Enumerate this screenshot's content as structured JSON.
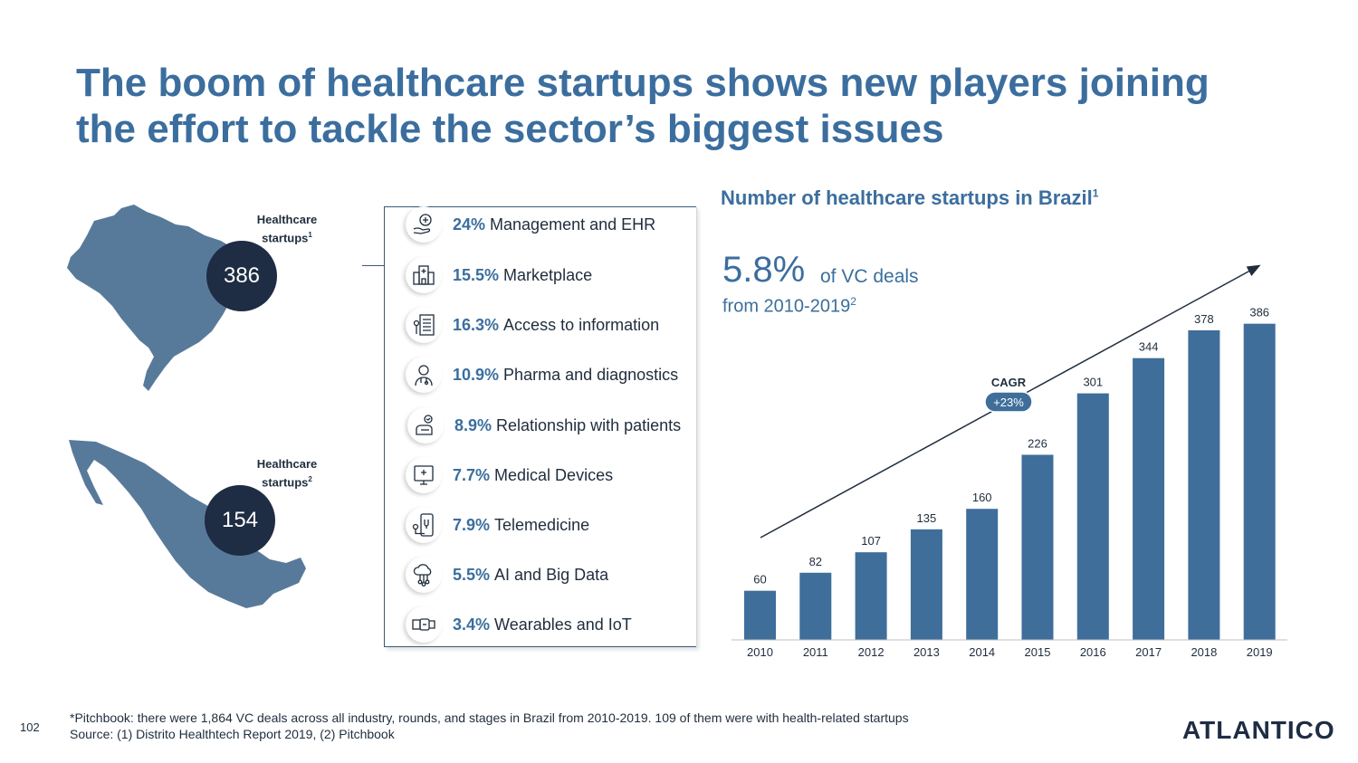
{
  "title": {
    "line1": "The boom of healthcare startups shows new players joining",
    "line2": "the effort to tackle the sector’s biggest issues"
  },
  "maps": [
    {
      "country": "Brazil",
      "label_line1": "Healthcare",
      "label_line2": "startups",
      "label_sup": "1",
      "value": "386"
    },
    {
      "country": "Mexico",
      "label_line1": "Healthcare",
      "label_line2": "startups",
      "label_sup": "2",
      "value": "154"
    }
  ],
  "categories": [
    {
      "pct": "24%",
      "label": "Management and EHR",
      "icon": "hand-medical-icon"
    },
    {
      "pct": "15.5%",
      "label": "Marketplace",
      "icon": "hospital-building-icon"
    },
    {
      "pct": "16.3%",
      "label": "Access to information",
      "icon": "document-list-icon"
    },
    {
      "pct": "10.9%",
      "label": "Pharma and diagnostics",
      "icon": "doctor-icon"
    },
    {
      "pct": "8.9%",
      "label": "Relationship with patients",
      "icon": "patient-hand-icon"
    },
    {
      "pct": "7.7%",
      "label": "Medical Devices",
      "icon": "monitor-icon"
    },
    {
      "pct": "7.9%",
      "label": "Telemedicine",
      "icon": "phone-stethoscope-icon"
    },
    {
      "pct": "5.5%",
      "label": "AI and Big Data",
      "icon": "cloud-network-icon"
    },
    {
      "pct": "3.4%",
      "label": "Wearables and IoT",
      "icon": "wearable-icon"
    }
  ],
  "vc": {
    "big": "5.8%",
    "small": "of VC deals",
    "range": "from 2010-2019",
    "range_sup": "2"
  },
  "chart_data": {
    "type": "bar",
    "title": "Number of healthcare startups in Brazil",
    "title_sup": "1",
    "categories": [
      "2010",
      "2011",
      "2012",
      "2013",
      "2014",
      "2015",
      "2016",
      "2017",
      "2018",
      "2019"
    ],
    "values": [
      60,
      82,
      107,
      135,
      160,
      226,
      301,
      344,
      378,
      386
    ],
    "bar_color": "#3f6e9a",
    "ylim": [
      0,
      400
    ],
    "grid": false,
    "annotation": {
      "label": "CAGR",
      "value": "+23%"
    }
  },
  "footnote": {
    "line1": "*Pitchbook: there were 1,864 VC deals across all industry, rounds, and stages in Brazil from 2010-2019. 109 of them were with health-related startups",
    "line2": "Source: (1) Distrito Healthtech Report 2019, (2) Pitchbook"
  },
  "page_number": "102",
  "logo": "ATLANTICO",
  "colors": {
    "accent": "#3b6e9e",
    "dark": "#1e2c44",
    "map": "#587a9a"
  }
}
